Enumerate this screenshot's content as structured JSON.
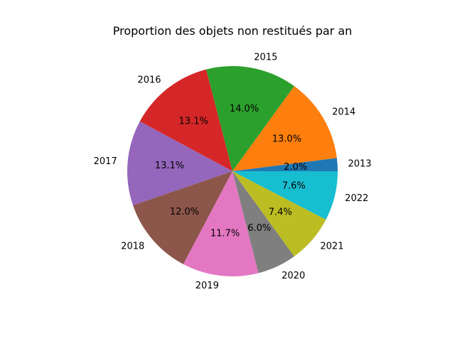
{
  "chart_data": {
    "type": "pie",
    "title": "Proportion des objets non restitués par an",
    "categories": [
      "2013",
      "2014",
      "2015",
      "2016",
      "2017",
      "2018",
      "2019",
      "2020",
      "2021",
      "2022"
    ],
    "values": [
      2.0,
      13.0,
      14.0,
      13.1,
      13.1,
      12.0,
      11.7,
      6.0,
      7.4,
      7.6
    ],
    "value_labels": [
      "2.0%",
      "13.0%",
      "14.0%",
      "13.1%",
      "13.1%",
      "12.0%",
      "11.7%",
      "6.0%",
      "7.4%",
      "7.6%"
    ],
    "colors": [
      "#1f77b4",
      "#ff7f0e",
      "#2ca02c",
      "#d62728",
      "#9467bd",
      "#8c564b",
      "#e377c2",
      "#7f7f7f",
      "#bcbd22",
      "#17becf"
    ],
    "start_angle_deg": 0,
    "direction": "counterclockwise",
    "legend": "none"
  }
}
